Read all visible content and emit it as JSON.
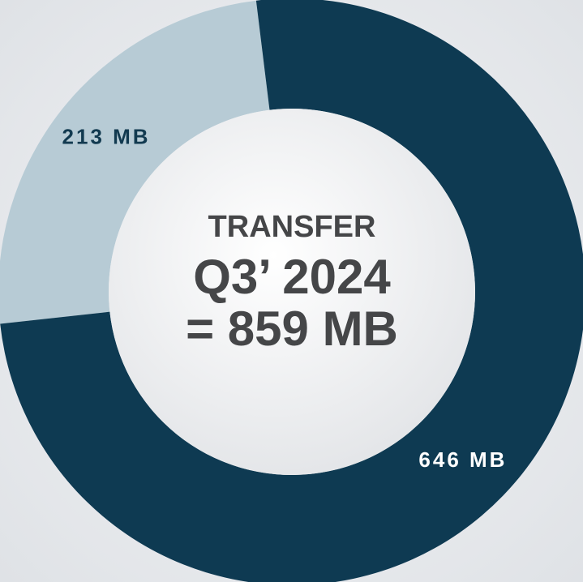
{
  "chart_data": {
    "type": "donut",
    "title_lines": [
      "TRANSFER",
      "Q3’ 2024",
      "= 859 MB"
    ],
    "values": [
      213,
      646
    ],
    "value_labels": [
      "213 MB",
      "646 MB"
    ],
    "colors": [
      "#b7cbd5",
      "#0e3a52"
    ],
    "label_colors": [
      "#123a50",
      "#ffffff"
    ]
  }
}
